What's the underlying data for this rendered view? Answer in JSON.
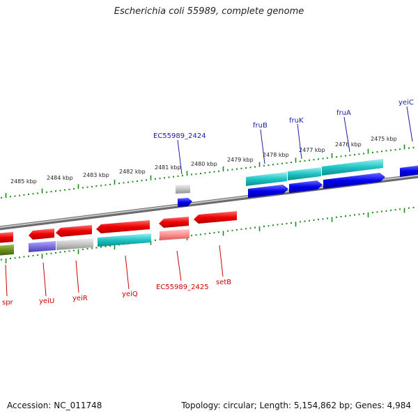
{
  "title": "Escherichia coli 55989, complete genome",
  "footer": {
    "accession": "Accession: NC_011748",
    "summary": "Topology: circular; Length: 5,154,862 bp; Genes: 4,984"
  },
  "scale_labels": [
    "2485 kbp",
    "2484 kbp",
    "2483 kbp",
    "2482 kbp",
    "2481 kbp",
    "2480 kbp",
    "2479 kbp",
    "2478 kbp",
    "2477 kbp",
    "2476 kbp",
    "2475 kbp"
  ],
  "forward_labels": [
    "EC55989_2424",
    "fruB",
    "fruK",
    "fruA",
    "yeiC"
  ],
  "reverse_labels": [
    "spr",
    "yeiU",
    "yeiR",
    "yeiQ",
    "EC55989_2425",
    "setB"
  ],
  "colors": {
    "forward_gene": "#1a1aff",
    "reverse_gene": "#ff1a1a",
    "forward_label": "#1a1aaa",
    "reverse_label": "#cc0000",
    "cyan": "#22c8c8",
    "tick": "#1a8a1a",
    "backbone": "#8a8a8a"
  }
}
